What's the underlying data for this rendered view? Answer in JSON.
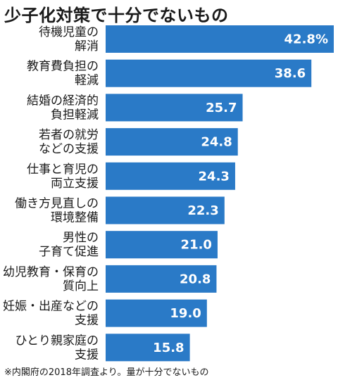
{
  "chart_data": {
    "type": "bar",
    "orientation": "horizontal",
    "title": "少子化対策で十分でないもの",
    "categories": [
      [
        "待機児童の",
        "解消"
      ],
      [
        "教育費負担の",
        "軽減"
      ],
      [
        "結婚の経済的",
        "負担軽減"
      ],
      [
        "若者の就労",
        "などの支援"
      ],
      [
        "仕事と育児の",
        "両立支援"
      ],
      [
        "働き方見直しの",
        "環境整備"
      ],
      [
        "男性の",
        "子育て促進"
      ],
      [
        "幼児教育・保育の",
        "質向上"
      ],
      [
        "妊娠・出産などの",
        "支援"
      ],
      [
        "ひとり親家庭の",
        "支援"
      ]
    ],
    "values": [
      42.8,
      38.6,
      25.7,
      24.8,
      24.3,
      22.3,
      21.0,
      20.8,
      19.0,
      15.8
    ],
    "value_labels": [
      "42.8%",
      "38.6",
      "25.7",
      "24.8",
      "24.3",
      "22.3",
      "21.0",
      "20.8",
      "19.0",
      "15.8"
    ],
    "bar_color": "#2a7ac7",
    "note": "※内閣府の2018年調査より。量が十分でないもの"
  }
}
